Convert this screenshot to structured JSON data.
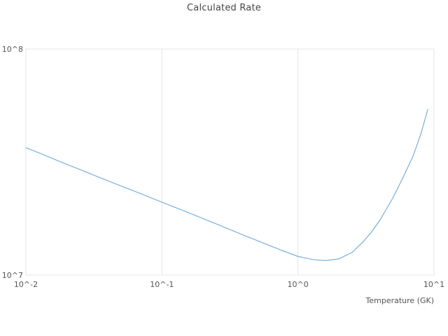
{
  "chart_data": {
    "type": "line",
    "title": "Calculated Rate",
    "xlabel": "Temperature (GK)",
    "ylabel": "",
    "xscale": "log",
    "yscale": "log",
    "xlim": [
      0.01,
      10
    ],
    "ylim": [
      10000000.0,
      100000000.0
    ],
    "grid": true,
    "legend": "none",
    "x_ticks": [
      {
        "value": 0.01,
        "label": "10^-2"
      },
      {
        "value": 0.1,
        "label": "10^-1"
      },
      {
        "value": 1,
        "label": "10^0"
      },
      {
        "value": 10,
        "label": "10^1"
      }
    ],
    "y_ticks": [
      {
        "value": 10000000.0,
        "label": "10^7"
      },
      {
        "value": 100000000.0,
        "label": "10^8"
      }
    ],
    "series": [
      {
        "name": "Calculated Rate",
        "color": "#6aaad8",
        "x": [
          0.01,
          0.013,
          0.018,
          0.025,
          0.035,
          0.05,
          0.07,
          0.1,
          0.14,
          0.2,
          0.28,
          0.4,
          0.55,
          0.75,
          1.0,
          1.3,
          1.6,
          2.0,
          2.5,
          3.0,
          3.5,
          4.0,
          5.0,
          6.0,
          7.0,
          8.0,
          9.0
        ],
        "y": [
          36600000.0,
          34400000.0,
          31700000.0,
          29300000.0,
          27000000.0,
          24800000.0,
          22900000.0,
          21000000.0,
          19400000.0,
          17800000.0,
          16400000.0,
          15000000.0,
          13900000.0,
          12900000.0,
          12100000.0,
          11700000.0,
          11600000.0,
          11800000.0,
          12600000.0,
          14000000.0,
          15600000.0,
          17500000.0,
          22000000.0,
          27500000.0,
          33500000.0,
          42000000.0,
          54000000.0
        ]
      }
    ]
  },
  "colors": {
    "line": "#6aaad8",
    "grid": "#e7e7e7",
    "tick_text": "#545454",
    "title_text": "#454545",
    "background": "#ffffff"
  }
}
